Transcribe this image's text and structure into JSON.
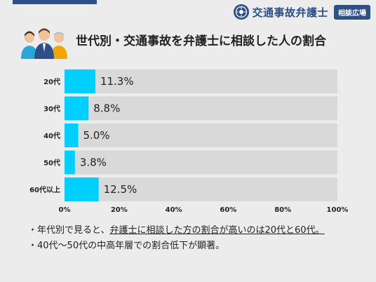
{
  "brand": {
    "name": "交通事故弁護士",
    "badge": "相談広場"
  },
  "title": "世代別・交通事故を弁護士に相談した人の割合",
  "chart_data": {
    "type": "bar",
    "orientation": "horizontal",
    "categories": [
      "20代",
      "30代",
      "40代",
      "50代",
      "60代以上"
    ],
    "values": [
      11.3,
      8.8,
      5.0,
      3.8,
      12.5
    ],
    "value_labels": [
      "11.3%",
      "8.8%",
      "5.0%",
      "3.8%",
      "12.5%"
    ],
    "xlim": [
      0,
      100
    ],
    "x_ticks": [
      "0%",
      "20%",
      "40%",
      "60%",
      "80%",
      "100%"
    ],
    "bar_color": "#00cfff",
    "track_color": "#d9d9d9"
  },
  "notes": {
    "line1_prefix": "・年代別で見ると、",
    "line1_underlined": "弁護士に相談した方の割合が高いのは20代と60代。",
    "line2": "・40代〜50代の中高年層での割合低下が顕著。"
  }
}
